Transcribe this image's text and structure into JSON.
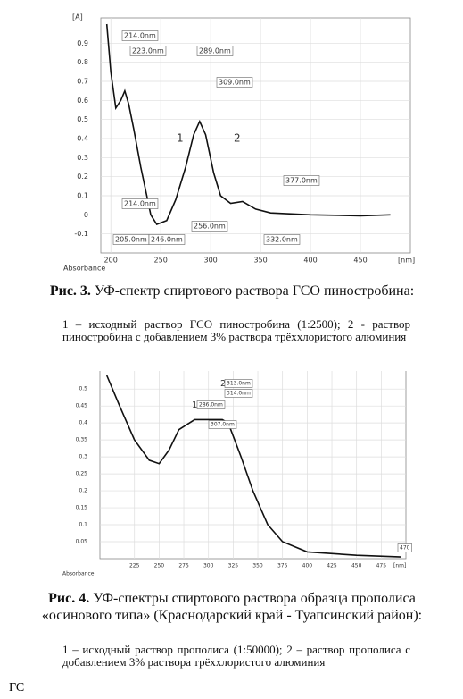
{
  "chart_data": [
    {
      "type": "line",
      "y_unit": "[A]",
      "x_unit": "[nm]",
      "x_label": "Absorbance",
      "xlim": [
        190,
        500
      ],
      "ylim": [
        -0.2,
        1.0
      ],
      "xticks": [
        200,
        250,
        300,
        350,
        400,
        450
      ],
      "yticks": [
        -0.1,
        0,
        0.1,
        0.2,
        0.3,
        0.4,
        0.5,
        0.6,
        0.7,
        0.8,
        0.9
      ],
      "grid": true,
      "series": [
        {
          "color": "#111111",
          "x": [
            196,
            200,
            205,
            210,
            214,
            218,
            223,
            230,
            240,
            246,
            256,
            265,
            275,
            283,
            289,
            295,
            303,
            310,
            320,
            332,
            345,
            360,
            400,
            450,
            480
          ],
          "values": [
            1.0,
            0.75,
            0.56,
            0.6,
            0.65,
            0.58,
            0.45,
            0.25,
            0.0,
            -0.05,
            -0.03,
            0.08,
            0.25,
            0.42,
            0.49,
            0.42,
            0.22,
            0.1,
            0.06,
            0.07,
            0.03,
            0.01,
            0.0,
            -0.005,
            0.0
          ]
        }
      ],
      "annotations": [
        "214.0nm",
        "223.0nm",
        "289.0nm",
        "309.0nm",
        "377.0nm",
        "214.0nm",
        "205.0nm",
        "246.0nm",
        "256.0nm",
        "332.0nm",
        "1",
        "2"
      ]
    },
    {
      "type": "line",
      "y_unit": "[A]",
      "x_unit": "[nm]",
      "x_label": "Absorbance",
      "xlim": [
        190,
        500
      ],
      "ylim": [
        0,
        0.54
      ],
      "xticks": [
        225,
        250,
        275,
        300,
        325,
        350,
        375,
        400,
        425,
        450,
        475
      ],
      "yticks": [
        0.05,
        0.1,
        0.15,
        0.2,
        0.25,
        0.3,
        0.35,
        0.4,
        0.45,
        0.5
      ],
      "grid": true,
      "series": [
        {
          "color": "#111111",
          "x": [
            197,
            210,
            225,
            240,
            250,
            260,
            270,
            286,
            300,
            314,
            320,
            333,
            345,
            360,
            375,
            400,
            450,
            495
          ],
          "values": [
            0.54,
            0.45,
            0.35,
            0.29,
            0.28,
            0.32,
            0.38,
            0.41,
            0.41,
            0.41,
            0.4,
            0.3,
            0.2,
            0.1,
            0.05,
            0.02,
            0.01,
            0.005
          ]
        }
      ],
      "annotations": [
        "1",
        "286.0nm",
        "2",
        "313.0nm",
        "314.0nm",
        "307.0nm",
        "470"
      ]
    }
  ],
  "captions": [
    {
      "label": "Рис. 3.",
      "title": "УФ-спектр спиртового раствора ГСО пиностробина:",
      "legend": "1 – исходный раствор ГСО пиностробина (1:2500); 2 - раствор пиностробина с добавлением 3% раствора трёххлористого алюминия"
    },
    {
      "label": "Рис. 4.",
      "title": "УФ-спектры спиртового раствора образца прополиса «осинового типа» (Краснодарский край - Туапсинский район):",
      "legend": "1 – исходный раствор прополиса (1:50000); 2 – раствор прополиса с добавлением 3% раствора трёххлористого алюминия"
    }
  ],
  "footer": "ГС"
}
